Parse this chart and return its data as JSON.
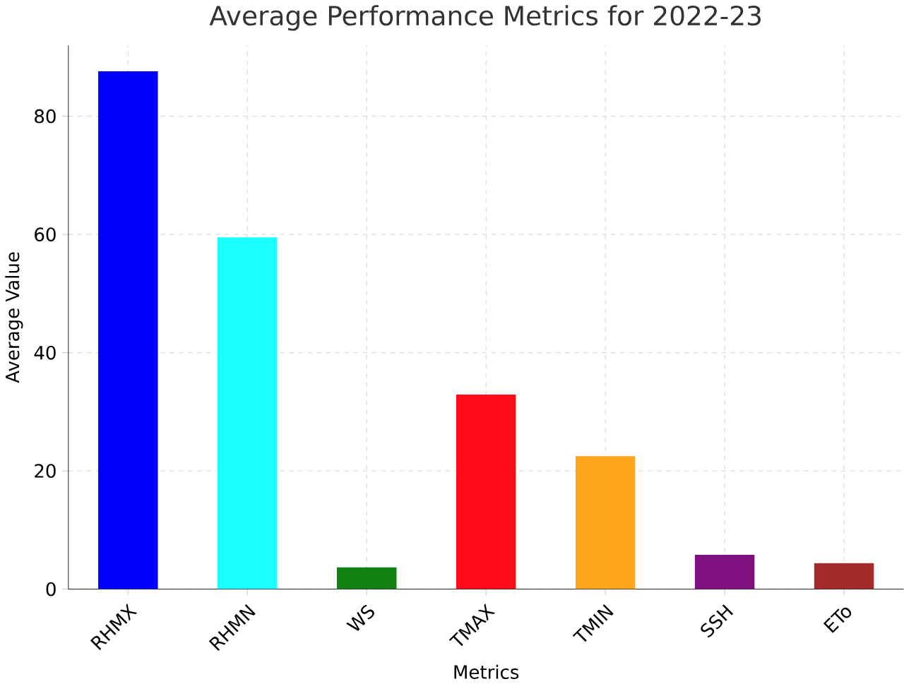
{
  "chart_data": {
    "type": "bar",
    "title": "Average Performance Metrics for 2022-23",
    "xlabel": "Metrics",
    "ylabel": "Average Value",
    "categories": [
      "RHMX",
      "RHMN",
      "WS",
      "TMAX",
      "TMIN",
      "SSH",
      "ETo"
    ],
    "values": [
      87.6,
      59.5,
      3.7,
      32.9,
      22.5,
      5.8,
      4.4
    ],
    "colors": [
      "#0000ff",
      "#1affff",
      "#108010",
      "#ff0a1a",
      "#ffa51a",
      "#801080",
      "#a52a2a"
    ],
    "ylim": [
      0,
      92
    ],
    "yticks": [
      0,
      20,
      40,
      60,
      80
    ],
    "grid": true
  }
}
